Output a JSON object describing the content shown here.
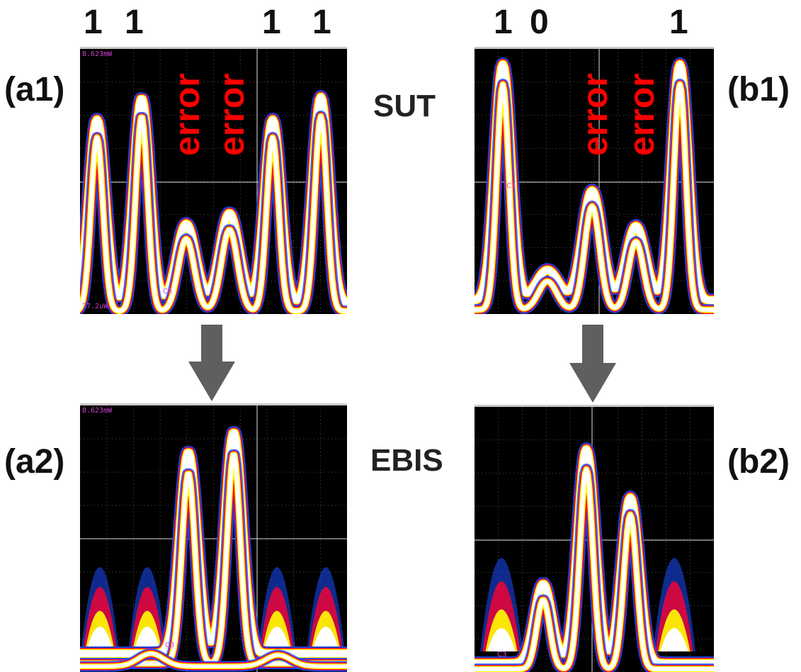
{
  "bits": {
    "a": [
      "1",
      "1",
      "1",
      "1"
    ],
    "b": [
      "1",
      "0",
      "1"
    ]
  },
  "panel_labels": {
    "a1": "(a1)",
    "b1": "(b1)",
    "a2": "(a2)",
    "b2": "(b2)"
  },
  "row_labels": {
    "top": "SUT",
    "bottom": "EBIS"
  },
  "error_label": "error",
  "scope_text": {
    "a1_top": "8.623mW",
    "a1_bottom": "77.2uW",
    "a1_channel": "C3",
    "b1_channel": "C3",
    "a2_top": "8.623mW",
    "a2_channel": "C3",
    "b2_channel": "C3"
  },
  "colors": {
    "error": "#ff0000",
    "arrow": "#5f5f5f",
    "grid": "#bdbdbd",
    "trace_core": "#ffffff",
    "trace_mid": "#ffff00",
    "trace_edge": "#ff0030",
    "trace_outer": "#1a4dff"
  }
}
